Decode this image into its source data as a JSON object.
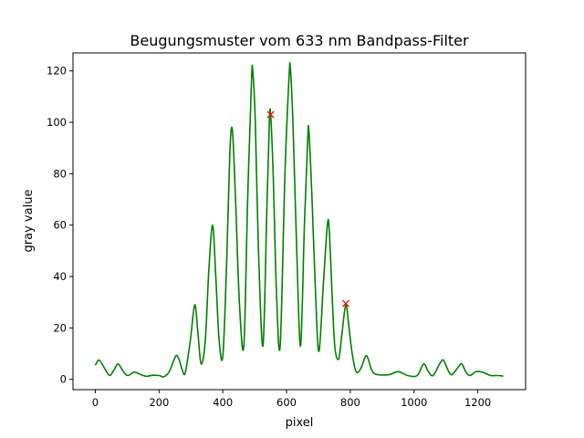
{
  "chart_data": {
    "type": "line",
    "title": "Beugungsmuster vom 633 nm Bandpass-Filter",
    "xlabel": "pixel",
    "ylabel": "gray value",
    "xlim": [
      -70,
      1350
    ],
    "ylim": [
      -4,
      127
    ],
    "xticks": [
      0,
      200,
      400,
      600,
      800,
      1000,
      1200
    ],
    "yticks": [
      0,
      20,
      40,
      60,
      80,
      100,
      120
    ],
    "grid": false,
    "legend": "none",
    "series": [
      {
        "color": "#008000",
        "points": [
          [
            0,
            5.5
          ],
          [
            12,
            7.5
          ],
          [
            28,
            4.5
          ],
          [
            45,
            1.5
          ],
          [
            60,
            4
          ],
          [
            72,
            6
          ],
          [
            88,
            3
          ],
          [
            102,
            1.5
          ],
          [
            122,
            2.8
          ],
          [
            140,
            2
          ],
          [
            160,
            1.2
          ],
          [
            180,
            1.6
          ],
          [
            200,
            1.5
          ],
          [
            215,
            1
          ],
          [
            232,
            3
          ],
          [
            252,
            9
          ],
          [
            262,
            8
          ],
          [
            272,
            4
          ],
          [
            282,
            2.5
          ],
          [
            298,
            15
          ],
          [
            312,
            29
          ],
          [
            322,
            18
          ],
          [
            332,
            6
          ],
          [
            345,
            15
          ],
          [
            356,
            42
          ],
          [
            368,
            60
          ],
          [
            378,
            40
          ],
          [
            388,
            16
          ],
          [
            400,
            9
          ],
          [
            412,
            45
          ],
          [
            422,
            88
          ],
          [
            430,
            97
          ],
          [
            440,
            70
          ],
          [
            452,
            30
          ],
          [
            466,
            13
          ],
          [
            478,
            70
          ],
          [
            490,
            116
          ],
          [
            494,
            120
          ],
          [
            502,
            100
          ],
          [
            512,
            50
          ],
          [
            526,
            13
          ],
          [
            538,
            65
          ],
          [
            546,
            100
          ],
          [
            550,
            103
          ],
          [
            558,
            80
          ],
          [
            568,
            35
          ],
          [
            580,
            13
          ],
          [
            595,
            80
          ],
          [
            608,
            118
          ],
          [
            612,
            121
          ],
          [
            620,
            100
          ],
          [
            632,
            50
          ],
          [
            644,
            13
          ],
          [
            656,
            60
          ],
          [
            666,
            92
          ],
          [
            670,
            97
          ],
          [
            680,
            70
          ],
          [
            692,
            30
          ],
          [
            702,
            11
          ],
          [
            716,
            38
          ],
          [
            728,
            60
          ],
          [
            734,
            58
          ],
          [
            744,
            30
          ],
          [
            752,
            12
          ],
          [
            764,
            8
          ],
          [
            774,
            18
          ],
          [
            786,
            29
          ],
          [
            796,
            20
          ],
          [
            806,
            10
          ],
          [
            818,
            3
          ],
          [
            832,
            4
          ],
          [
            848,
            9
          ],
          [
            856,
            8
          ],
          [
            866,
            4
          ],
          [
            880,
            2
          ],
          [
            920,
            1.8
          ],
          [
            950,
            3
          ],
          [
            980,
            1.5
          ],
          [
            1010,
            1.5
          ],
          [
            1030,
            6
          ],
          [
            1045,
            3
          ],
          [
            1060,
            1.5
          ],
          [
            1080,
            6
          ],
          [
            1092,
            7.5
          ],
          [
            1105,
            4
          ],
          [
            1118,
            1.8
          ],
          [
            1140,
            5
          ],
          [
            1150,
            6
          ],
          [
            1162,
            3
          ],
          [
            1175,
            1.5
          ],
          [
            1195,
            3
          ],
          [
            1215,
            2.8
          ],
          [
            1240,
            1.5
          ],
          [
            1260,
            1.5
          ],
          [
            1280,
            1.3
          ]
        ]
      }
    ],
    "markers": {
      "symbol": "x",
      "color": "#ff0000",
      "points": [
        [
          550,
          103
        ],
        [
          786,
          29.5
        ]
      ]
    }
  }
}
